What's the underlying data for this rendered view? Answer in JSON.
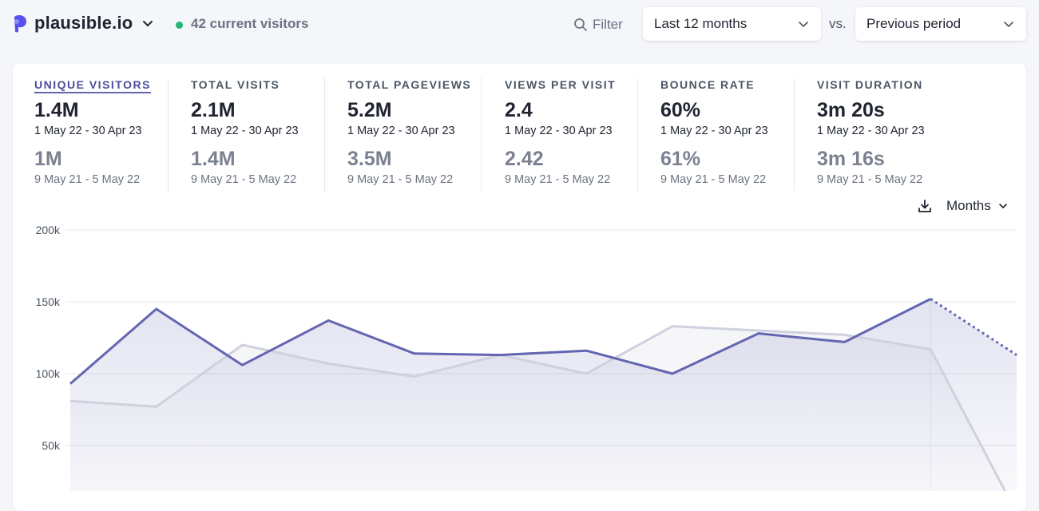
{
  "header": {
    "site_name": "plausible.io",
    "current_visitors": "42 current visitors",
    "filter_label": "Filter",
    "period_label": "Last 12 months",
    "vs_label": "vs.",
    "compare_label": "Previous period"
  },
  "metrics": [
    {
      "title": "UNIQUE VISITORS",
      "value": "1.4M",
      "range": "1 May 22 - 30 Apr 23",
      "compare_value": "1M",
      "compare_range": "9 May 21 - 5 May 22",
      "active": true
    },
    {
      "title": "TOTAL VISITS",
      "value": "2.1M",
      "range": "1 May 22 - 30 Apr 23",
      "compare_value": "1.4M",
      "compare_range": "9 May 21 - 5 May 22"
    },
    {
      "title": "TOTAL PAGEVIEWS",
      "value": "5.2M",
      "range": "1 May 22 - 30 Apr 23",
      "compare_value": "3.5M",
      "compare_range": "9 May 21 - 5 May 22"
    },
    {
      "title": "VIEWS PER VISIT",
      "value": "2.4",
      "range": "1 May 22 - 30 Apr 23",
      "compare_value": "2.42",
      "compare_range": "9 May 21 - 5 May 22"
    },
    {
      "title": "BOUNCE RATE",
      "value": "60%",
      "range": "1 May 22 - 30 Apr 23",
      "compare_value": "61%",
      "compare_range": "9 May 21 - 5 May 22"
    },
    {
      "title": "VISIT DURATION",
      "value": "3m 20s",
      "range": "1 May 22 - 30 Apr 23",
      "compare_value": "3m 16s",
      "compare_range": "9 May 21 - 5 May 22"
    }
  ],
  "chart_controls": {
    "interval_label": "Months",
    "download_icon": "download-icon"
  },
  "colors": {
    "accent": "#6366b0",
    "comparison": "#cfd1de",
    "live": "#22b573"
  },
  "chart_data": {
    "type": "line",
    "y_ticks": [
      "200k",
      "150k",
      "100k",
      "50k"
    ],
    "ylim": [
      0,
      200000
    ],
    "grid": true,
    "series": [
      {
        "values": [
          93000,
          145000,
          106000,
          137000,
          114000,
          113000,
          116000,
          100000,
          128000,
          122000,
          152000,
          113000
        ],
        "incomplete_last": true
      },
      {
        "values": [
          81000,
          77000,
          120000,
          107000,
          98000,
          113000,
          100000,
          133000,
          130000,
          127000,
          117000,
          3000
        ]
      }
    ]
  }
}
